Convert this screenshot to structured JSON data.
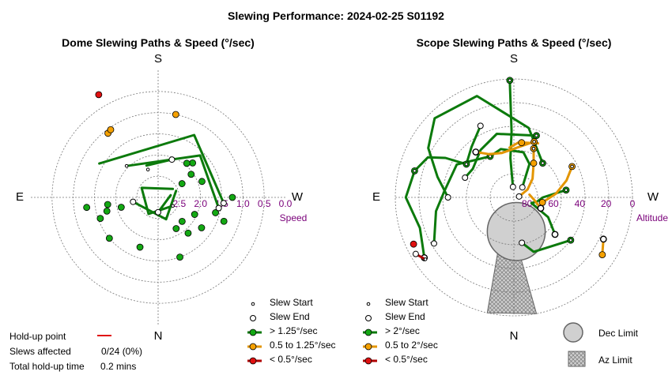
{
  "title": "Slewing Performance: 2024-02-25 S01192",
  "colors": {
    "green": "#13a813",
    "orange": "#f5a100",
    "red": "#e01010",
    "purple": "#7a007a",
    "grid": "#777777",
    "dark_green": "#0c7a0c",
    "dark_orange": "#e39500",
    "dark_red": "#b00000"
  },
  "chart_data": [
    {
      "type": "scatter",
      "title": "Dome Slewing Paths & Speed (°/sec)",
      "projection": "polar",
      "compass": {
        "top": "S",
        "bottom": "N",
        "left": "E",
        "right": "W"
      },
      "radial_axis": {
        "label": "Speed",
        "ticks": [
          "2.5",
          "2.0",
          "1.5",
          "1.0",
          "0.5",
          "0.0"
        ],
        "values": [
          2.5,
          2.0,
          1.5,
          1.0,
          0.5,
          0.0
        ],
        "range": [
          0.0,
          3.0
        ],
        "center_value": 3.0
      },
      "series": [
        {
          "speed_class": "> 1.25°/sec",
          "color": "green",
          "paths": [
            {
              "a": [
                [
                  340,
                  2.2
                ],
                [
                  20,
                  2.05
                ]
              ]
            },
            {
              "a": [
                [
                  120,
                  2.6
                ],
                [
                  210,
                  2.55
                ],
                [
                  300,
                  2.55
                ],
                [
                  420,
                  2.6
                ]
              ]
            },
            {
              "a": [
                [
                  -60,
                  1.4
                ],
                [
                  30,
                  1.3
                ],
                [
                  95,
                  1.45
                ]
              ]
            },
            {
              "a": [
                [
                  -45,
                  1.95
                ],
                [
                  45,
                  1.6
                ],
                [
                  100,
                  1.55
                ]
              ]
            },
            {
              "a": [
                [
                  80,
                  2.7
                ],
                [
                  180,
                  2.65
                ]
              ]
            },
            {
              "a": [
                [
                  70,
                  2.55
                ],
                [
                  160,
                  2.45
                ],
                [
                  260,
                  2.4
                ]
              ]
            }
          ],
          "starts": [
            [
              340,
              2.3
            ],
            [
              -45,
              1.95
            ],
            [
              120,
              2.6
            ]
          ],
          "ends": [
            [
              20,
              2.05
            ],
            [
              95,
              1.45
            ],
            [
              100,
              1.55
            ],
            [
              180,
              2.65
            ],
            [
              260,
              2.4
            ]
          ],
          "points": [
            [
              45,
              1.85
            ],
            [
              40,
              1.95
            ],
            [
              55,
              2.05
            ],
            [
              70,
              1.9
            ],
            [
              60,
              2.35
            ],
            [
              90,
              1.25
            ],
            [
              110,
              1.35
            ],
            [
              105,
              1.6
            ],
            [
              115,
              2.05
            ],
            [
              125,
              1.75
            ],
            [
              135,
              2.2
            ],
            [
              140,
              1.9
            ],
            [
              150,
              2.15
            ],
            [
              160,
              1.5
            ],
            [
              200,
              1.75
            ],
            [
              250,
              1.55
            ],
            [
              255,
              1.75
            ],
            [
              262,
              1.3
            ],
            [
              262,
              1.8
            ],
            [
              255,
              2.1
            ],
            [
              230,
              1.5
            ]
          ]
        },
        {
          "speed_class": "0.5 to 1.25°/sec",
          "color": "orange",
          "paths": [],
          "starts": [],
          "ends": [],
          "points": [
            [
              12,
              1.0
            ],
            [
              322,
              1.08
            ],
            [
              325,
              1.05
            ]
          ]
        },
        {
          "speed_class": "< 0.5°/sec",
          "color": "red",
          "paths": [],
          "starts": [],
          "ends": [],
          "points": [
            [
              330,
              0.2
            ]
          ]
        }
      ]
    },
    {
      "type": "scatter",
      "title": "Scope Slewing Paths & Speed (°/sec)",
      "projection": "polar",
      "compass": {
        "top": "S",
        "bottom": "N",
        "left": "E",
        "right": "W"
      },
      "radial_axis": {
        "label": "Altitude",
        "ticks": [
          "80",
          "60",
          "40",
          "20",
          "0"
        ],
        "values": [
          80,
          60,
          40,
          20,
          0
        ],
        "range": [
          0,
          90
        ],
        "center_value": 90
      },
      "limits": {
        "dec_limit": {
          "az": 176,
          "alt": 64,
          "radius_alt": 22
        },
        "az_limit": [
          [
            186,
            70
          ],
          [
            204,
            70
          ],
          [
            193,
            0
          ],
          [
            169,
            0
          ]
        ]
      },
      "series": [
        {
          "speed_class": "> 2°/sec",
          "color": "green",
          "paths": [
            {
              "a": [
                [
                  358,
                  1
                ],
                [
                  358,
                  40
                ],
                [
                  355,
                  60
                ],
                [
                  355,
                  82
                ]
              ]
            },
            {
              "a": [
                [
                  40,
                  56
                ],
                [
                  12,
                  36
                ],
                [
                  340,
                  8
                ],
                [
                  315,
                  5
                ],
                [
                  300,
                  15
                ],
                [
                  285,
                  30
                ],
                [
                  270,
                  40
                ]
              ]
            },
            {
              "a": [
                [
                  330,
                  54
                ],
                [
                  300,
                  40
                ],
                [
                  275,
                  37
                ],
                [
                  260,
                  30
                ],
                [
                  240,
                  20
                ]
              ]
            },
            {
              "a": [
                [
                  330,
                  54
                ],
                [
                  345,
                  52
                ],
                [
                  12,
                  55
                ],
                [
                  25,
                  62
                ],
                [
                  40,
                  80
                ]
              ]
            },
            {
              "a": [
                [
                  20,
                  40
                ],
                [
                  345,
                  40
                ],
                [
                  325,
                  46
                ],
                [
                  305,
                  52
                ],
                [
                  292,
                  50
                ]
              ]
            },
            {
              "a": [
                [
                  305,
                  46
                ],
                [
                  300,
                  30
                ],
                [
                  295,
                  18
                ],
                [
                  285,
                  12
                ]
              ]
            },
            {
              "a": [
                [
                  285,
                  12
                ],
                [
                  270,
                  8
                ],
                [
                  252,
                  15
                ],
                [
                  243,
                  12
                ],
                [
                  236,
                  8
                ]
              ]
            },
            {
              "a": [
                [
                  82,
                  50
                ],
                [
                  90,
                  68
                ],
                [
                  100,
                  72
                ],
                [
                  108,
                  76
                ],
                [
                  120,
                  60
                ],
                [
                  132,
                  48
                ]
              ]
            },
            {
              "a": [
                [
                  127,
                  36
                ],
                [
                  160,
                  46
                ],
                [
                  170,
                  55
                ]
              ]
            },
            {
              "a": [
                [
                  305,
                  46
                ],
                [
                  320,
                  40
                ],
                [
                  335,
                  30
                ]
              ]
            }
          ],
          "starts": [
            [
              358,
              1
            ],
            [
              40,
              56
            ],
            [
              330,
              54
            ],
            [
              305,
              46
            ],
            [
              285,
              12
            ],
            [
              82,
              50
            ],
            [
              127,
              36
            ],
            [
              20,
              40
            ]
          ],
          "ends": [
            [
              355,
              82
            ],
            [
              270,
              40
            ],
            [
              240,
              20
            ],
            [
              40,
              80
            ],
            [
              292,
              50
            ],
            [
              236,
              8
            ],
            [
              132,
              48
            ],
            [
              170,
              55
            ],
            [
              335,
              30
            ]
          ],
          "points": [
            [
              358,
              1
            ],
            [
              40,
              56
            ],
            [
              20,
              40
            ],
            [
              82,
              50
            ],
            [
              305,
              46
            ],
            [
              330,
              54
            ],
            [
              236,
              8
            ],
            [
              127,
              36
            ],
            [
              132,
              48
            ],
            [
              285,
              12
            ]
          ]
        },
        {
          "speed_class": "0.5 to 2°/sec",
          "color": "orange",
          "paths": [
            {
              "a": [
                [
                  22,
                  50
                ],
                [
                  30,
                  60
                ],
                [
                  45,
                  70
                ],
                [
                  60,
                  78
                ],
                [
                  80,
                  86
                ]
              ]
            },
            {
              "a": [
                [
                  20,
                  45
                ],
                [
                  10,
                  50
                ],
                [
                  345,
                  55
                ],
                [
                  330,
                  52
                ],
                [
                  320,
                  45
                ]
              ]
            },
            {
              "a": [
                [
                  62,
                  40
                ],
                [
                  72,
                  48
                ],
                [
                  85,
                  58
                ],
                [
                  100,
                  68
                ],
                [
                  112,
                  68
                ]
              ]
            },
            {
              "a": [
                [
                  112,
                  68
                ],
                [
                  95,
                  75
                ],
                [
                  80,
                  78
                ]
              ]
            },
            {
              "a": [
                [
                  123,
                  10
                ],
                [
                  115,
                  15
                ]
              ]
            },
            {
              "a": [
                [
                  24,
                  45
                ],
                [
                  5,
                  48
                ],
                [
                  355,
                  52
                ]
              ]
            }
          ],
          "starts": [
            [
              22,
              50
            ],
            [
              20,
              45
            ],
            [
              62,
              40
            ]
          ],
          "ends": [
            [
              80,
              86
            ],
            [
              320,
              45
            ],
            [
              112,
              68
            ],
            [
              115,
              15
            ]
          ],
          "points": [
            [
              22,
              50
            ],
            [
              20,
              45
            ],
            [
              8,
              48
            ],
            [
              30,
              60
            ],
            [
              62,
              40
            ],
            [
              100,
              68
            ],
            [
              112,
              68
            ],
            [
              320,
              45
            ],
            [
              123,
              10
            ],
            [
              115,
              15
            ]
          ]
        },
        {
          "speed_class": "< 0.5°/sec",
          "color": "red",
          "paths": [
            {
              "a": [
                [
                  235,
                  8
                ],
                [
                  240,
                  4
                ]
              ]
            }
          ],
          "starts": [
            [
              235,
              8
            ]
          ],
          "ends": [
            [
              240,
              4
            ]
          ],
          "points": [
            [
              245,
              6
            ]
          ]
        }
      ]
    }
  ],
  "legend_dome": {
    "slew_start": "Slew Start",
    "slew_end": "Slew End",
    "fast": "> 1.25°/sec",
    "mid": "0.5 to 1.25°/sec",
    "slow": "< 0.5°/sec"
  },
  "legend_scope": {
    "slew_start": "Slew Start",
    "slew_end": "Slew End",
    "fast": "> 2°/sec",
    "mid": "0.5 to 2°/sec",
    "slow": "< 0.5°/sec"
  },
  "limits_legend": {
    "dec": "Dec Limit",
    "az": "Az Limit"
  },
  "holdup": {
    "point_label": "Hold-up point",
    "slews_label": "Slews affected",
    "slews_value": "0/24 (0%)",
    "time_label": "Total hold-up time",
    "time_value": "0.2 mins"
  }
}
